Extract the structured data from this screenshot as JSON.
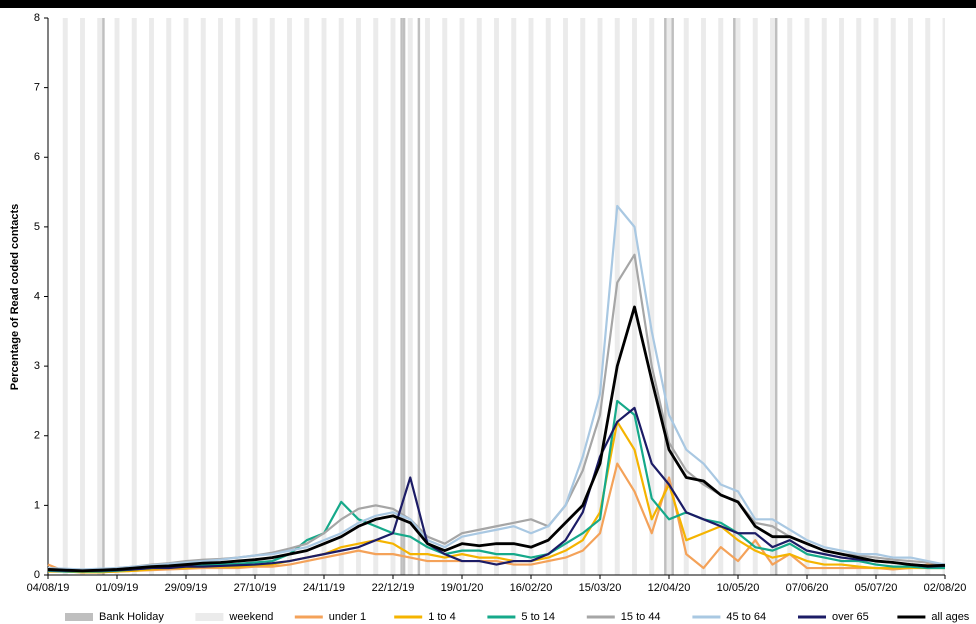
{
  "chart_data": {
    "type": "line",
    "y_label": "Percentage of Read coded contacts",
    "x": [
      "04/08/19",
      "11/08/19",
      "18/08/19",
      "25/08/19",
      "01/09/19",
      "08/09/19",
      "15/09/19",
      "22/09/19",
      "29/09/19",
      "06/10/19",
      "13/10/19",
      "20/10/19",
      "27/10/19",
      "03/11/19",
      "10/11/19",
      "17/11/19",
      "24/11/19",
      "01/12/19",
      "08/12/19",
      "15/12/19",
      "22/12/19",
      "29/12/19",
      "05/01/20",
      "12/01/20",
      "19/01/20",
      "26/01/20",
      "02/02/20",
      "09/02/20",
      "16/02/20",
      "23/02/20",
      "01/03/20",
      "08/03/20",
      "15/03/20",
      "22/03/20",
      "29/03/20",
      "05/04/20",
      "12/04/20",
      "19/04/20",
      "26/04/20",
      "03/05/20",
      "10/05/20",
      "17/05/20",
      "24/05/20",
      "31/05/20",
      "07/06/20",
      "14/06/20",
      "21/06/20",
      "28/06/20",
      "05/07/20",
      "12/07/20",
      "19/07/20",
      "26/07/20",
      "02/08/20"
    ],
    "xlim": [
      "04/08/19",
      "02/08/20"
    ],
    "xticks": [
      "04/08/19",
      "01/09/19",
      "29/09/19",
      "27/10/19",
      "24/11/19",
      "22/12/19",
      "19/01/20",
      "16/02/20",
      "15/03/20",
      "12/04/20",
      "10/05/20",
      "07/06/20",
      "05/07/20",
      "02/08/20"
    ],
    "ylim": [
      0,
      8
    ],
    "yticks": [
      0,
      1,
      2,
      3,
      4,
      5,
      6,
      7,
      8
    ],
    "legend": "bottom",
    "bank_holiday": {
      "name": "Bank Holiday",
      "color": "#bfbfbf",
      "dates": [
        "26/08/19",
        "25/12/19",
        "26/12/19",
        "01/01/20",
        "10/04/20",
        "13/04/20",
        "08/05/20",
        "25/05/20"
      ]
    },
    "weekend": {
      "name": "weekend",
      "color": "#ebebeb"
    },
    "series": [
      {
        "name": "under 1",
        "color": "#f4a259",
        "values": [
          0.15,
          0.05,
          0.04,
          0.04,
          0.05,
          0.06,
          0.07,
          0.08,
          0.09,
          0.1,
          0.1,
          0.1,
          0.12,
          0.12,
          0.15,
          0.2,
          0.25,
          0.3,
          0.35,
          0.3,
          0.3,
          0.25,
          0.2,
          0.2,
          0.2,
          0.2,
          0.2,
          0.15,
          0.15,
          0.2,
          0.25,
          0.35,
          0.6,
          1.6,
          1.2,
          0.6,
          1.4,
          0.3,
          0.1,
          0.4,
          0.2,
          0.5,
          0.15,
          0.3,
          0.1,
          0.1,
          0.1,
          0.1,
          0.1,
          0.08,
          0.1,
          0.15,
          0.12
        ]
      },
      {
        "name": "1 to 4",
        "color": "#f5b400",
        "values": [
          0.05,
          0.05,
          0.04,
          0.04,
          0.05,
          0.06,
          0.08,
          0.1,
          0.1,
          0.12,
          0.12,
          0.12,
          0.14,
          0.15,
          0.2,
          0.25,
          0.3,
          0.4,
          0.45,
          0.5,
          0.45,
          0.3,
          0.3,
          0.25,
          0.3,
          0.25,
          0.25,
          0.2,
          0.2,
          0.25,
          0.35,
          0.5,
          0.9,
          2.2,
          1.8,
          0.8,
          1.3,
          0.5,
          0.6,
          0.7,
          0.5,
          0.35,
          0.25,
          0.3,
          0.2,
          0.15,
          0.15,
          0.12,
          0.1,
          0.1,
          0.1,
          0.1,
          0.1
        ]
      },
      {
        "name": "5 to 14",
        "color": "#16a98a",
        "values": [
          0.06,
          0.05,
          0.05,
          0.05,
          0.06,
          0.08,
          0.1,
          0.12,
          0.13,
          0.15,
          0.15,
          0.16,
          0.18,
          0.2,
          0.3,
          0.5,
          0.6,
          1.05,
          0.8,
          0.7,
          0.6,
          0.55,
          0.4,
          0.3,
          0.35,
          0.35,
          0.3,
          0.3,
          0.25,
          0.3,
          0.45,
          0.6,
          0.8,
          2.5,
          2.3,
          1.1,
          0.8,
          0.9,
          0.8,
          0.75,
          0.6,
          0.4,
          0.35,
          0.45,
          0.3,
          0.25,
          0.2,
          0.2,
          0.15,
          0.12,
          0.12,
          0.1,
          0.1
        ]
      },
      {
        "name": "15 to 44",
        "color": "#a6a6a6",
        "values": [
          0.09,
          0.08,
          0.08,
          0.08,
          0.1,
          0.12,
          0.15,
          0.17,
          0.2,
          0.22,
          0.23,
          0.25,
          0.28,
          0.32,
          0.38,
          0.45,
          0.6,
          0.8,
          0.95,
          1.0,
          0.95,
          0.8,
          0.55,
          0.45,
          0.6,
          0.65,
          0.7,
          0.75,
          0.8,
          0.7,
          1.0,
          1.5,
          2.3,
          4.2,
          4.6,
          3.0,
          1.9,
          1.5,
          1.3,
          1.15,
          1.05,
          0.75,
          0.7,
          0.55,
          0.45,
          0.35,
          0.3,
          0.28,
          0.25,
          0.22,
          0.2,
          0.18,
          0.15
        ]
      },
      {
        "name": "45 to 64",
        "color": "#a9c8e2",
        "values": [
          0.1,
          0.09,
          0.08,
          0.09,
          0.1,
          0.12,
          0.14,
          0.16,
          0.18,
          0.2,
          0.22,
          0.25,
          0.28,
          0.3,
          0.35,
          0.4,
          0.5,
          0.6,
          0.75,
          0.85,
          0.9,
          0.8,
          0.5,
          0.4,
          0.55,
          0.6,
          0.65,
          0.7,
          0.6,
          0.7,
          1.0,
          1.7,
          2.6,
          5.3,
          5.0,
          3.5,
          2.3,
          1.8,
          1.6,
          1.3,
          1.2,
          0.8,
          0.8,
          0.65,
          0.5,
          0.4,
          0.35,
          0.3,
          0.3,
          0.25,
          0.25,
          0.2,
          0.15
        ]
      },
      {
        "name": "over 65",
        "color": "#1c1c66",
        "values": [
          0.07,
          0.06,
          0.06,
          0.06,
          0.07,
          0.08,
          0.1,
          0.1,
          0.12,
          0.12,
          0.13,
          0.14,
          0.15,
          0.17,
          0.2,
          0.25,
          0.3,
          0.35,
          0.4,
          0.5,
          0.6,
          1.4,
          0.45,
          0.3,
          0.2,
          0.2,
          0.15,
          0.2,
          0.2,
          0.3,
          0.5,
          0.9,
          1.7,
          2.2,
          2.4,
          1.6,
          1.3,
          0.9,
          0.8,
          0.7,
          0.6,
          0.6,
          0.4,
          0.5,
          0.35,
          0.3,
          0.25,
          0.22,
          0.2,
          0.18,
          0.15,
          0.12,
          0.13
        ]
      },
      {
        "name": "all ages",
        "color": "#000000",
        "values": [
          0.08,
          0.07,
          0.06,
          0.07,
          0.08,
          0.1,
          0.12,
          0.13,
          0.15,
          0.17,
          0.18,
          0.2,
          0.22,
          0.25,
          0.3,
          0.35,
          0.45,
          0.55,
          0.7,
          0.8,
          0.85,
          0.75,
          0.45,
          0.35,
          0.45,
          0.42,
          0.45,
          0.45,
          0.4,
          0.5,
          0.75,
          1.0,
          1.6,
          3.0,
          3.85,
          2.8,
          1.8,
          1.4,
          1.35,
          1.15,
          1.05,
          0.7,
          0.55,
          0.55,
          0.45,
          0.35,
          0.3,
          0.25,
          0.2,
          0.18,
          0.15,
          0.13,
          0.14
        ]
      }
    ]
  }
}
